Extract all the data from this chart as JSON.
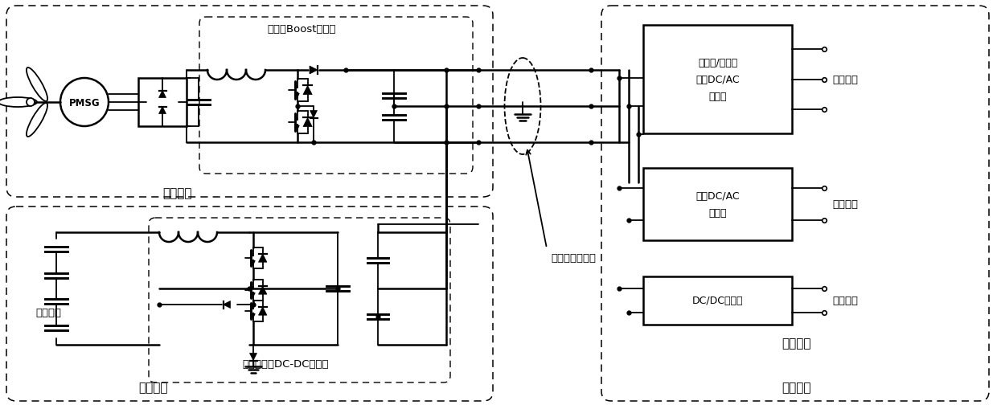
{
  "bg_color": "#ffffff",
  "lc": "#000000",
  "labels": {
    "pmsg": "PMSG",
    "wind_unit": "风电单元",
    "storage_unit": "储能单元",
    "load_unit": "负荷单元",
    "boost_converter": "三电平Boost变换器",
    "dc_dc_converter": "三电平双向DC-DC变换器",
    "super_cap": "超级电容",
    "dc_bus": "双极性直流母线",
    "three_phase_inv": "三电平/两电平\n三相DC/AC\n逆变器",
    "single_phase_inv": "单相DC/AC\n逆变器",
    "dcdc": "DC/DC变换器",
    "three_phase_load": "三相负荷",
    "single_phase_load": "单相负荷",
    "dc_load": "直流负荷"
  },
  "figsize": [
    12.4,
    5.1
  ],
  "dpi": 100
}
